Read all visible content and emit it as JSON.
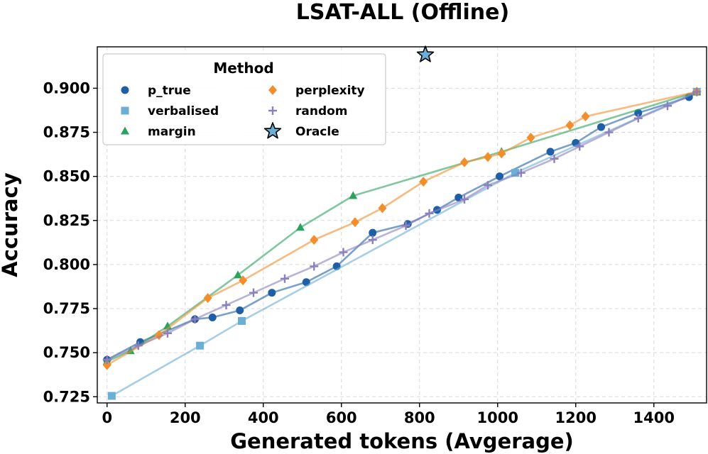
{
  "chart_data": {
    "type": "line",
    "title": "LSAT-ALL (Offline)",
    "xlabel": "Generated tokens (Avgerage)",
    "ylabel": "Accuracy",
    "xlim": [
      -25,
      1535
    ],
    "ylim": [
      0.7215,
      0.9235
    ],
    "xticks": [
      0,
      200,
      400,
      600,
      800,
      1000,
      1200,
      1400
    ],
    "yticks": [
      0.725,
      0.75,
      0.775,
      0.8,
      0.825,
      0.85,
      0.875,
      0.9
    ],
    "xtick_labels": [
      "0",
      "200",
      "400",
      "600",
      "800",
      "1000",
      "1200",
      "1400"
    ],
    "ytick_labels": [
      "0.725",
      "0.750",
      "0.775",
      "0.800",
      "0.825",
      "0.850",
      "0.875",
      "0.900"
    ],
    "grid": true,
    "legend": {
      "title": "Method",
      "position": "top-left",
      "columns": 2
    },
    "series": [
      {
        "name": "p_true",
        "color": "#1f5fa6",
        "marker": "circle",
        "x": [
          0,
          85,
          225,
          270,
          340,
          422,
          510,
          588,
          680,
          770,
          845,
          900,
          1005,
          1135,
          1200,
          1265,
          1360,
          1490,
          1510
        ],
        "y": [
          0.746,
          0.756,
          0.769,
          0.77,
          0.774,
          0.784,
          0.79,
          0.799,
          0.818,
          0.823,
          0.831,
          0.838,
          0.85,
          0.864,
          0.869,
          0.878,
          0.886,
          0.895,
          0.898
        ]
      },
      {
        "name": "verbalised",
        "color": "#6baed6",
        "marker": "square",
        "x": [
          12,
          238,
          345,
          1045,
          1510
        ],
        "y": [
          0.7255,
          0.754,
          0.768,
          0.852,
          0.898
        ]
      },
      {
        "name": "margin",
        "color": "#2ca25f",
        "marker": "triangle",
        "x": [
          0,
          60,
          155,
          335,
          495,
          630,
          1010,
          1510
        ],
        "y": [
          0.745,
          0.751,
          0.765,
          0.794,
          0.821,
          0.839,
          0.864,
          0.898
        ]
      },
      {
        "name": "perplexity",
        "color": "#f28e2b",
        "marker": "diamond",
        "x": [
          0,
          133,
          258,
          348,
          530,
          635,
          705,
          810,
          915,
          975,
          1010,
          1085,
          1185,
          1225,
          1510
        ],
        "y": [
          0.743,
          0.76,
          0.781,
          0.791,
          0.814,
          0.824,
          0.832,
          0.847,
          0.858,
          0.861,
          0.863,
          0.872,
          0.879,
          0.884,
          0.898
        ]
      },
      {
        "name": "random",
        "color": "#8c7fbd",
        "marker": "plus",
        "x": [
          0,
          80,
          155,
          225,
          305,
          375,
          455,
          530,
          605,
          680,
          765,
          825,
          915,
          975,
          1060,
          1145,
          1210,
          1285,
          1360,
          1435,
          1510
        ],
        "y": [
          0.746,
          0.754,
          0.761,
          0.769,
          0.777,
          0.784,
          0.792,
          0.799,
          0.807,
          0.814,
          0.822,
          0.829,
          0.837,
          0.845,
          0.852,
          0.86,
          0.867,
          0.875,
          0.883,
          0.89,
          0.898
        ]
      },
      {
        "name": "Oracle",
        "color": "#6baed6",
        "marker": "star",
        "x": [
          815
        ],
        "y": [
          0.919
        ]
      }
    ]
  }
}
